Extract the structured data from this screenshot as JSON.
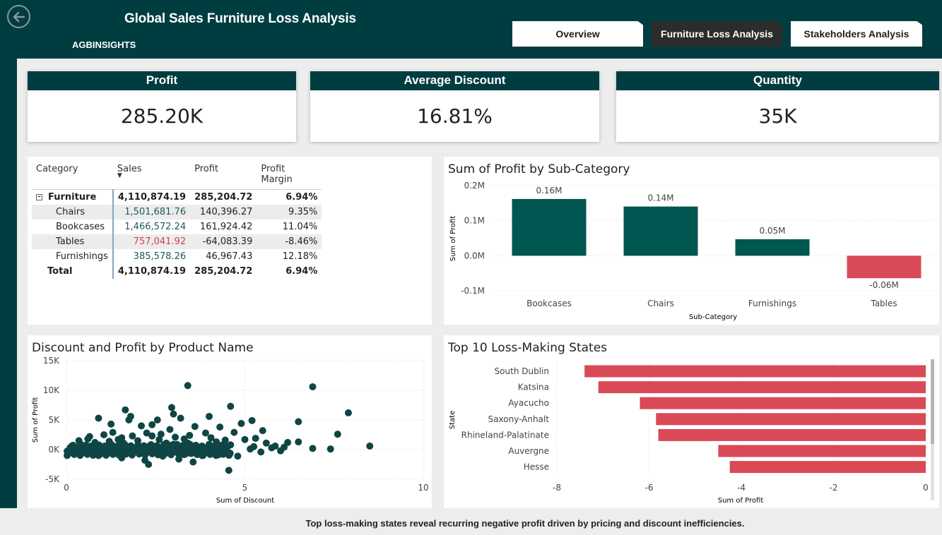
{
  "header": {
    "title": "Global Sales Furniture Loss Analysis",
    "brand": "AGBINSIGHTS",
    "back_icon": "back-arrow-icon",
    "tabs": [
      {
        "label": "Overview",
        "active": false
      },
      {
        "label": "Furniture Loss Analysis",
        "active": true
      },
      {
        "label": "Stakeholders Analysis",
        "active": false
      }
    ],
    "colors": {
      "header": "#003d40",
      "bar_positive": "#005650",
      "bar_negative": "#d94a56"
    }
  },
  "kpis": [
    {
      "label": "Profit",
      "value": "285.20K"
    },
    {
      "label": "Average Discount",
      "value": "16.81%"
    },
    {
      "label": "Quantity",
      "value": "35K"
    }
  ],
  "matrix": {
    "columns": [
      "Category",
      "Sales",
      "Profit",
      "Profit Margin"
    ],
    "rows": [
      {
        "name": "Furniture",
        "sales": "4,110,874.19",
        "profit": "285,204.72",
        "margin": "6.94%"
      },
      {
        "name": "Chairs",
        "sales": "1,501,681.76",
        "profit": "140,396.27",
        "margin": "9.35%"
      },
      {
        "name": "Bookcases",
        "sales": "1,466,572.24",
        "profit": "161,924.42",
        "margin": "11.04%"
      },
      {
        "name": "Tables",
        "sales": "757,041.92",
        "profit": "-64,083.39",
        "margin": "-8.46%"
      },
      {
        "name": "Furnishings",
        "sales": "385,578.26",
        "profit": "46,967.43",
        "margin": "12.18%"
      },
      {
        "name": "Total",
        "sales": "4,110,874.19",
        "profit": "285,204.72",
        "margin": "6.94%"
      }
    ]
  },
  "chart_data": [
    {
      "type": "bar",
      "title": "Sum of Profit by Sub-Category",
      "xlabel": "Sub-Category",
      "ylabel": "Sum of Profit",
      "categories": [
        "Bookcases",
        "Chairs",
        "Furnishings",
        "Tables"
      ],
      "values": [
        161924.42,
        140396.27,
        46967.43,
        -64083.39
      ],
      "data_labels": [
        "0.16M",
        "0.14M",
        "0.05M",
        "-0.06M"
      ],
      "yticks": [
        "0.2M",
        "0.1M",
        "0.0M",
        "-0.1M"
      ],
      "tick_values": [
        200000,
        100000,
        0,
        -100000
      ],
      "ylim": [
        -100000,
        200000
      ],
      "grid": true
    },
    {
      "type": "scatter",
      "title": "Discount and Profit by Product Name",
      "xlabel": "Sum of Discount",
      "ylabel": "Sum of Profit",
      "xlim": [
        0,
        10
      ],
      "ylim": [
        -5000,
        15000
      ],
      "xticks": [
        "0",
        "5",
        "10"
      ],
      "xtick_values": [
        0,
        5,
        10
      ],
      "yticks": [
        "15K",
        "10K",
        "5K",
        "0K",
        "-5K"
      ],
      "ytick_values": [
        15000,
        10000,
        5000,
        0,
        -5000
      ],
      "grid": true,
      "points": [
        [
          3.4,
          10800
        ],
        [
          6.9,
          10600
        ],
        [
          4.6,
          7300
        ],
        [
          2.95,
          7100
        ],
        [
          1.65,
          6700
        ],
        [
          7.9,
          6200
        ],
        [
          3.0,
          6000
        ],
        [
          4.0,
          5600
        ],
        [
          1.8,
          5600
        ],
        [
          0.9,
          5300
        ],
        [
          1.75,
          5000
        ],
        [
          3.2,
          5300
        ],
        [
          5.2,
          4900
        ],
        [
          2.55,
          5000
        ],
        [
          6.5,
          4700
        ],
        [
          4.9,
          4400
        ],
        [
          2.4,
          4200
        ],
        [
          1.25,
          4300
        ],
        [
          3.6,
          3900
        ],
        [
          2.1,
          4000
        ],
        [
          4.3,
          3800
        ],
        [
          7.6,
          2600
        ],
        [
          1.3,
          2900
        ],
        [
          2.9,
          3400
        ],
        [
          4.7,
          2900
        ],
        [
          5.5,
          3200
        ],
        [
          3.9,
          2800
        ],
        [
          2.4,
          2300
        ],
        [
          1.55,
          2000
        ],
        [
          0.6,
          1800
        ],
        [
          3.3,
          1800
        ],
        [
          5.0,
          1700
        ],
        [
          6.2,
          1200
        ],
        [
          6.5,
          1300
        ],
        [
          5.6,
          1100
        ],
        [
          4.0,
          900
        ],
        [
          2.8,
          1100
        ],
        [
          8.5,
          600
        ],
        [
          7.4,
          100
        ],
        [
          6.0,
          -200
        ],
        [
          5.85,
          600
        ],
        [
          5.25,
          500
        ],
        [
          4.55,
          -3500
        ],
        [
          2.2,
          -1800
        ],
        [
          1.55,
          -1400
        ],
        [
          0.9,
          -1000
        ],
        [
          1.3,
          -800
        ],
        [
          3.15,
          -1600
        ],
        [
          3.55,
          -2100
        ],
        [
          2.7,
          -1100
        ],
        [
          3.8,
          -1000
        ],
        [
          4.25,
          -900
        ],
        [
          4.8,
          -1100
        ],
        [
          2.3,
          -2500
        ],
        [
          0.5,
          -400
        ],
        [
          1.8,
          -500
        ],
        [
          0.3,
          200
        ],
        [
          0.7,
          600
        ],
        [
          1.1,
          400
        ],
        [
          1.5,
          700
        ],
        [
          1.9,
          300
        ],
        [
          2.3,
          500
        ],
        [
          2.7,
          300
        ],
        [
          3.1,
          200
        ],
        [
          3.5,
          400
        ],
        [
          3.9,
          100
        ],
        [
          4.4,
          500
        ],
        [
          0.2,
          -200
        ],
        [
          0.4,
          900
        ],
        [
          0.8,
          1200
        ],
        [
          1.2,
          1400
        ],
        [
          1.6,
          1100
        ],
        [
          2.0,
          1500
        ],
        [
          2.6,
          1700
        ],
        [
          3.0,
          900
        ],
        [
          3.4,
          1100
        ],
        [
          3.8,
          600
        ],
        [
          4.2,
          1300
        ],
        [
          4.6,
          800
        ],
        [
          0.1,
          300
        ],
        [
          0.15,
          600
        ],
        [
          0.55,
          -600
        ],
        [
          0.95,
          -300
        ],
        [
          1.35,
          100
        ],
        [
          1.75,
          -200
        ],
        [
          2.15,
          200
        ],
        [
          2.55,
          -500
        ],
        [
          2.95,
          -300
        ],
        [
          3.35,
          -700
        ],
        [
          3.75,
          -400
        ],
        [
          4.15,
          -300
        ],
        [
          5.15,
          100
        ],
        [
          5.45,
          -400
        ],
        [
          5.75,
          300
        ],
        [
          6.1,
          400
        ],
        [
          6.9,
          200
        ],
        [
          0.35,
          1500
        ],
        [
          0.65,
          2200
        ],
        [
          1.05,
          2500
        ],
        [
          1.45,
          1700
        ],
        [
          1.85,
          2300
        ],
        [
          2.25,
          2800
        ],
        [
          2.65,
          2600
        ],
        [
          3.05,
          2100
        ],
        [
          3.45,
          2400
        ],
        [
          4.05,
          2000
        ],
        [
          4.45,
          1600
        ],
        [
          5.3,
          1900
        ]
      ]
    },
    {
      "type": "bar",
      "orientation": "horizontal",
      "title": "Top 10 Loss-Making States",
      "xlabel": "Sum of Profit",
      "ylabel": "State",
      "categories": [
        "South Dublin",
        "Katsina",
        "Ayacucho",
        "Saxony-Anhalt",
        "Rhineland-Palatinate",
        "Auvergne",
        "Hesse"
      ],
      "values": [
        -7.4,
        -7.1,
        -6.2,
        -5.85,
        -5.8,
        -4.5,
        -4.25
      ],
      "xticks": [
        "-8",
        "-6",
        "-4",
        "-2",
        "0"
      ],
      "xtick_values": [
        -8,
        -6,
        -4,
        -2,
        0
      ],
      "xlim": [
        -8,
        0
      ],
      "grid": true
    }
  ],
  "footer": {
    "note": "Top loss-making states reveal recurring negative profit driven by pricing and discount inefficiencies."
  }
}
